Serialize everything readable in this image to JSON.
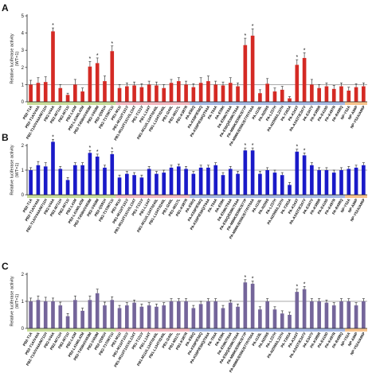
{
  "categories": [
    "PB2-T1A",
    "PB2-T1A/V44A",
    "PB2-T1A/V44A/M711H",
    "PB2-V44A",
    "PB2-M711H",
    "PB2-M711I",
    "PB2-L41M",
    "PB2-L41M/L42M",
    "PB2-T458H/V459M",
    "PB2-V459M",
    "PB2-Q591H",
    "PB2-T1T/M711I",
    "PB1-M11I",
    "PB1-M11I/T131V",
    "PB1-M11I/T131V/L134T",
    "PB1-T131V",
    "PB1-L134T",
    "PB1-M11I/L134T/I240L",
    "PB1-L134T/I240L",
    "PB1-I240L",
    "PB1-M317L",
    "PB1-K387R",
    "PA-E56Q",
    "PA-K58P/E56Q",
    "PA-K58P/E56Q/T64A",
    "PA-T64A",
    "PA-E59K",
    "PA-E59K/T64A",
    "PA-E56Q/E59K/T64A",
    "PA-M86K/E59K/S77P",
    "PA-M86K/E59K/S77P/T64A",
    "PA-I118L",
    "PA-N209S",
    "PA-L237H",
    "PA-N209S/L237H",
    "PA-T263A",
    "PA-A343T",
    "PA-A343T/E347V",
    "PA-E347V",
    "PA-K388R",
    "PA-E410D",
    "PA-K497R",
    "PA-R498Q",
    "NP-Y52A",
    "NP-A86P",
    "NP-Y52A/A86P"
  ],
  "chart_data": [
    {
      "panel": "A",
      "type": "bar",
      "ylabel": "Relative luciferase activity (WT=1)",
      "ylim": [
        0,
        5
      ],
      "yticks": [
        0,
        1,
        2,
        3,
        4,
        5
      ],
      "color": "#d42a24",
      "values": [
        1.0,
        1.1,
        1.15,
        4.1,
        0.8,
        0.4,
        1.0,
        0.6,
        2.05,
        2.25,
        1.2,
        2.95,
        0.8,
        0.9,
        0.95,
        0.85,
        1.0,
        0.95,
        0.8,
        1.1,
        1.2,
        1.0,
        0.85,
        1.1,
        1.2,
        1.0,
        0.95,
        1.1,
        0.9,
        3.3,
        3.85,
        0.5,
        1.05,
        0.6,
        0.7,
        0.2,
        2.15,
        2.55,
        1.0,
        0.8,
        0.9,
        0.75,
        0.9,
        0.65,
        0.85,
        0.9
      ],
      "errors": [
        0.25,
        0.3,
        0.3,
        0.2,
        0.2,
        0.1,
        0.3,
        0.2,
        0.3,
        0.3,
        0.3,
        0.3,
        0.2,
        0.2,
        0.2,
        0.2,
        0.2,
        0.2,
        0.2,
        0.2,
        0.2,
        0.2,
        0.2,
        0.3,
        0.3,
        0.2,
        0.2,
        0.3,
        0.2,
        0.4,
        0.4,
        0.2,
        0.3,
        0.2,
        0.2,
        0.1,
        0.3,
        0.3,
        0.3,
        0.2,
        0.2,
        0.2,
        0.2,
        0.2,
        0.2,
        0.2
      ],
      "significant": [
        3,
        8,
        9,
        11,
        29,
        30,
        36,
        37
      ],
      "marker": "*"
    },
    {
      "panel": "B",
      "type": "bar",
      "ylabel": "Relative luciferase activity (WT=1)",
      "ylim": [
        0,
        2
      ],
      "yticks": [
        0,
        1,
        2
      ],
      "color": "#1a1ac8",
      "values": [
        1.0,
        1.2,
        1.15,
        2.15,
        1.05,
        0.6,
        1.2,
        1.2,
        1.7,
        1.55,
        1.1,
        1.65,
        0.7,
        0.85,
        0.8,
        0.7,
        1.05,
        0.85,
        0.9,
        1.1,
        1.15,
        1.05,
        0.85,
        1.1,
        1.1,
        1.2,
        0.8,
        1.05,
        0.85,
        1.8,
        1.8,
        0.85,
        1.0,
        0.9,
        0.8,
        0.4,
        1.75,
        1.6,
        1.2,
        1.0,
        1.0,
        0.9,
        1.0,
        1.05,
        1.1,
        1.2
      ],
      "errors": [
        0.1,
        0.15,
        0.15,
        0.1,
        0.1,
        0.1,
        0.1,
        0.1,
        0.1,
        0.1,
        0.1,
        0.1,
        0.1,
        0.1,
        0.1,
        0.1,
        0.1,
        0.1,
        0.1,
        0.1,
        0.1,
        0.1,
        0.1,
        0.1,
        0.1,
        0.1,
        0.1,
        0.1,
        0.1,
        0.1,
        0.1,
        0.1,
        0.1,
        0.1,
        0.1,
        0.1,
        0.1,
        0.1,
        0.1,
        0.1,
        0.1,
        0.1,
        0.1,
        0.1,
        0.1,
        0.1
      ],
      "significant": [
        3,
        8,
        9,
        11,
        29,
        30,
        36,
        37
      ],
      "marker": "*"
    },
    {
      "panel": "C",
      "type": "bar",
      "ylabel": "Relative luciferase activity (WT=1)",
      "ylim": [
        0,
        2
      ],
      "yticks": [
        0,
        1,
        2
      ],
      "color": "#74659a",
      "values": [
        1.0,
        1.05,
        1.0,
        1.0,
        0.85,
        0.45,
        1.05,
        0.65,
        1.05,
        1.3,
        0.85,
        1.05,
        0.75,
        0.85,
        0.95,
        0.8,
        0.85,
        0.8,
        0.85,
        1.0,
        1.0,
        1.0,
        0.75,
        0.9,
        1.0,
        1.0,
        0.75,
        0.95,
        0.8,
        1.7,
        1.65,
        0.7,
        1.0,
        0.7,
        0.55,
        0.5,
        1.35,
        1.45,
        1.0,
        1.0,
        0.95,
        0.85,
        1.0,
        1.0,
        0.85,
        1.0
      ],
      "errors": [
        0.12,
        0.15,
        0.15,
        0.12,
        0.12,
        0.1,
        0.15,
        0.1,
        0.15,
        0.15,
        0.12,
        0.12,
        0.1,
        0.1,
        0.1,
        0.1,
        0.1,
        0.1,
        0.1,
        0.1,
        0.1,
        0.1,
        0.1,
        0.1,
        0.1,
        0.1,
        0.1,
        0.1,
        0.1,
        0.1,
        0.1,
        0.1,
        0.1,
        0.1,
        0.1,
        0.1,
        0.1,
        0.1,
        0.1,
        0.1,
        0.1,
        0.1,
        0.1,
        0.1,
        0.1,
        0.1
      ],
      "significant": [
        29,
        30,
        36,
        37
      ],
      "marker": "*"
    }
  ],
  "groups": [
    {
      "start": 0,
      "end": 11,
      "color": "#c9dd9b"
    },
    {
      "start": 12,
      "end": 21,
      "color": "#f2b9c0"
    },
    {
      "start": 22,
      "end": 42,
      "color": "#a7b9e2"
    },
    {
      "start": 43,
      "end": 45,
      "color": "#f7c48e"
    }
  ],
  "reference_line": 1,
  "errorbar_color": "#222222",
  "axis_color": "#222222"
}
